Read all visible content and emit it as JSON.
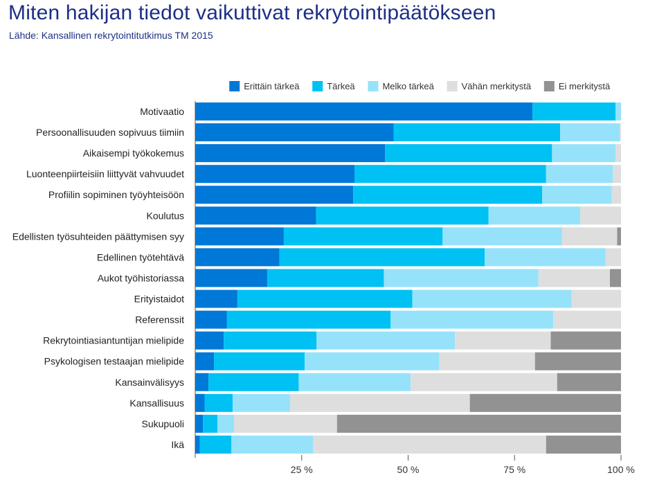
{
  "title": "Miten hakijan tiedot vaikuttivat rekrytointipäätökseen",
  "subtitle": "Lähde: Kansallinen rekrytointitutkimus TM 2015",
  "chart_data": {
    "type": "bar",
    "orientation": "horizontal",
    "stacked": true,
    "xlim": [
      0,
      100
    ],
    "x_ticks": [
      "25 %",
      "50 %",
      "75 %",
      "100 %"
    ],
    "x_tick_values": [
      25,
      50,
      75,
      100
    ],
    "legend_position": "top-right",
    "categories": [
      "Motivaatio",
      "Persoonallisuuden sopivuus tiimiin",
      "Aikaisempi työkokemus",
      "Luonteenpiirteisiin liittyvät vahvuudet",
      "Profiilin sopiminen työyhteisöön",
      "Koulutus",
      "Edellisten työsuhteiden päättymisen syy",
      "Edellinen työtehtävä",
      "Aukot työhistoriassa",
      "Erityistaidot",
      "Referenssit",
      "Rekrytointiasiantuntijan mielipide",
      "Psykologisen testaajan mielipide",
      "Kansainvälisyys",
      "Kansallisuus",
      "Sukupuoli",
      "Ikä"
    ],
    "series": [
      {
        "name": "Erittäin tärkeä",
        "color": "#0078d7",
        "values": [
          79.2,
          46.6,
          44.6,
          37.4,
          37.1,
          28.4,
          20.8,
          19.8,
          16.9,
          9.9,
          7.4,
          6.7,
          4.4,
          3.1,
          2.2,
          1.8,
          1.1
        ]
      },
      {
        "name": "Tärkeä",
        "color": "#00c1f3",
        "values": [
          19.5,
          39.1,
          39.2,
          45.0,
          44.4,
          40.5,
          37.3,
          48.2,
          27.4,
          41.1,
          38.5,
          21.8,
          21.3,
          21.2,
          6.6,
          3.4,
          7.4
        ]
      },
      {
        "name": "Melko tärkeä",
        "color": "#96e2fb",
        "values": [
          1.3,
          14.0,
          14.9,
          15.7,
          16.3,
          21.5,
          28.0,
          28.4,
          36.3,
          37.4,
          38.2,
          32.5,
          31.6,
          26.3,
          13.5,
          3.9,
          19.2
        ]
      },
      {
        "name": "Vähän merkitystä",
        "color": "#dedede",
        "values": [
          0.0,
          0.3,
          1.3,
          1.9,
          2.2,
          9.6,
          13.0,
          3.6,
          16.8,
          11.6,
          15.9,
          22.5,
          22.5,
          34.4,
          42.2,
          24.2,
          54.7
        ]
      },
      {
        "name": "Ei merkitystä",
        "color": "#929292",
        "values": [
          0.0,
          0.0,
          0.0,
          0.0,
          0.0,
          0.0,
          0.9,
          0.0,
          2.6,
          0.0,
          0.0,
          16.5,
          20.2,
          15.0,
          35.5,
          66.7,
          17.6
        ]
      }
    ]
  }
}
